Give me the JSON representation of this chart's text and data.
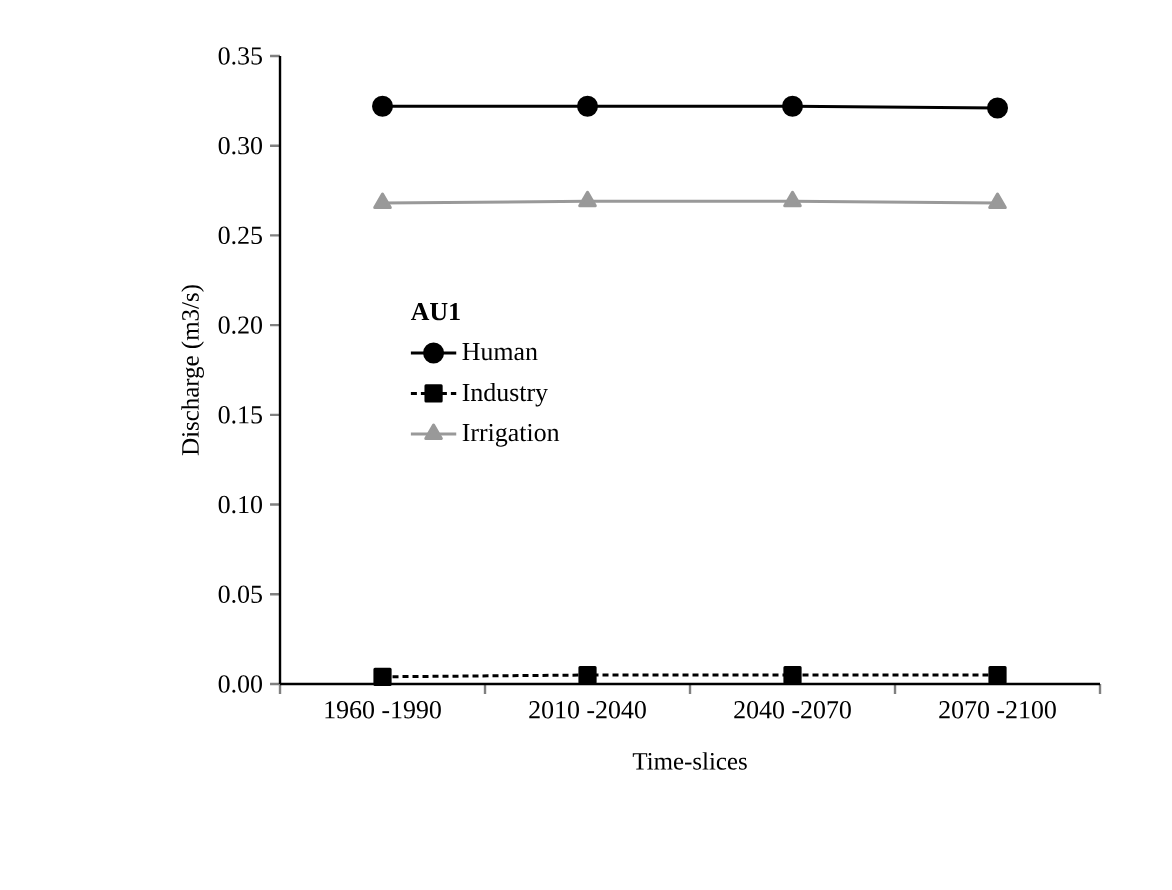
{
  "chart_data": {
    "type": "line",
    "xlabel": "Time-slices",
    "ylabel": "Discharge (m3/s)",
    "legend_title": "AU1",
    "categories": [
      "1960 -1990",
      "2010 -2040",
      "2040 -2070",
      "2070 -2100"
    ],
    "series": [
      {
        "name": "Human",
        "color": "#000000",
        "marker": "circle",
        "line_style": "solid",
        "values": [
          0.322,
          0.322,
          0.322,
          0.321
        ]
      },
      {
        "name": "Industry",
        "color": "#000000",
        "marker": "square",
        "line_style": "dashed",
        "values": [
          0.004,
          0.005,
          0.005,
          0.005
        ]
      },
      {
        "name": "Irrigation",
        "color": "#999999",
        "marker": "triangle",
        "line_style": "solid",
        "values": [
          0.268,
          0.269,
          0.269,
          0.268
        ]
      }
    ],
    "ylim": [
      0,
      0.35
    ],
    "yticks": [
      {
        "value": 0,
        "label": "0.00"
      },
      0.05,
      {
        "value": 0.1,
        "label": "0.10"
      },
      0.15,
      {
        "value": 0.2,
        "label": "0.20"
      },
      0.25,
      {
        "value": 0.3,
        "label": "0.30"
      },
      0.35
    ],
    "grid": false,
    "legend": "left"
  }
}
